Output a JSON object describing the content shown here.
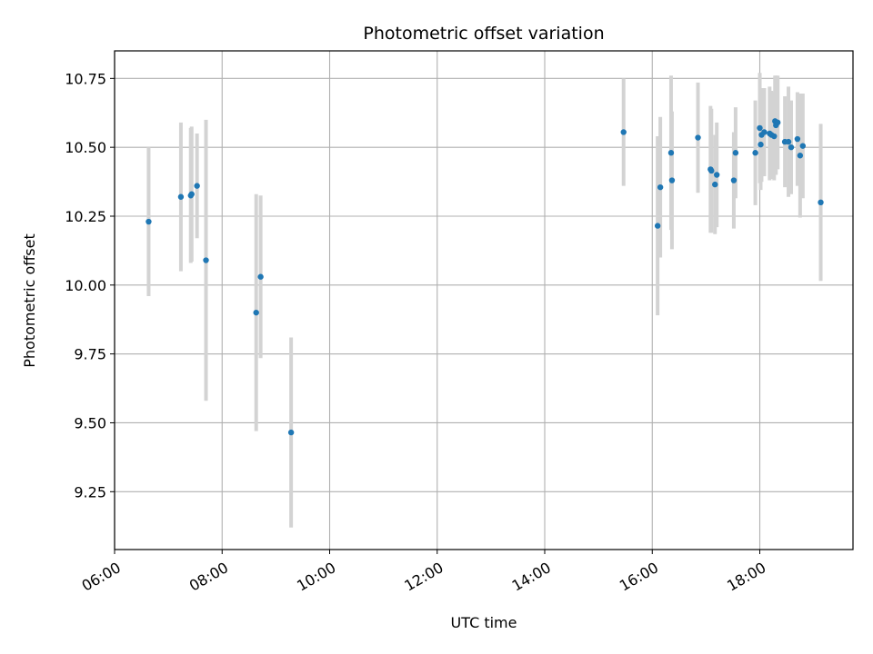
{
  "chart_data": {
    "type": "scatter",
    "title": "Photometric offset variation",
    "xlabel": "UTC time",
    "ylabel": "Photometric offset",
    "x_is_time": true,
    "xlim": [
      "06:00",
      "19:44"
    ],
    "ylim": [
      9.04,
      10.85
    ],
    "x_ticks": [
      "06:00",
      "08:00",
      "10:00",
      "12:00",
      "14:00",
      "16:00",
      "18:00"
    ],
    "y_ticks": [
      9.25,
      9.5,
      9.75,
      10.0,
      10.25,
      10.5,
      10.75
    ],
    "y_tick_labels": [
      "9.25",
      "9.50",
      "9.75",
      "10.00",
      "10.25",
      "10.50",
      "10.75"
    ],
    "grid": true,
    "point_color": "#1f77b4",
    "errorbar_color": "#d3d3d3",
    "points": [
      {
        "x": "06:38",
        "y": 10.23,
        "err": 0.27
      },
      {
        "x": "07:14",
        "y": 10.32,
        "err": 0.27
      },
      {
        "x": "07:25",
        "y": 10.325,
        "err": 0.245
      },
      {
        "x": "07:26",
        "y": 10.33,
        "err": 0.245
      },
      {
        "x": "07:32",
        "y": 10.36,
        "err": 0.19
      },
      {
        "x": "07:42",
        "y": 10.09,
        "err": 0.51
      },
      {
        "x": "08:38",
        "y": 9.9,
        "err": 0.43
      },
      {
        "x": "08:43",
        "y": 10.03,
        "err": 0.295
      },
      {
        "x": "09:17",
        "y": 9.465,
        "err": 0.345
      },
      {
        "x": "15:28",
        "y": 10.555,
        "err": 0.195
      },
      {
        "x": "16:06",
        "y": 10.215,
        "err": 0.325
      },
      {
        "x": "16:09",
        "y": 10.355,
        "err": 0.255
      },
      {
        "x": "16:21",
        "y": 10.48,
        "err": 0.28
      },
      {
        "x": "16:22",
        "y": 10.38,
        "err": 0.25
      },
      {
        "x": "16:51",
        "y": 10.535,
        "err": 0.2
      },
      {
        "x": "17:05",
        "y": 10.42,
        "err": 0.23
      },
      {
        "x": "17:06",
        "y": 10.415,
        "err": 0.225
      },
      {
        "x": "17:10",
        "y": 10.365,
        "err": 0.18
      },
      {
        "x": "17:12",
        "y": 10.4,
        "err": 0.19
      },
      {
        "x": "17:31",
        "y": 10.38,
        "err": 0.175
      },
      {
        "x": "17:33",
        "y": 10.48,
        "err": 0.165
      },
      {
        "x": "17:55",
        "y": 10.48,
        "err": 0.19
      },
      {
        "x": "18:00",
        "y": 10.57,
        "err": 0.2
      },
      {
        "x": "18:01",
        "y": 10.51,
        "err": 0.165
      },
      {
        "x": "18:02",
        "y": 10.545,
        "err": 0.17
      },
      {
        "x": "18:05",
        "y": 10.555,
        "err": 0.16
      },
      {
        "x": "18:11",
        "y": 10.55,
        "err": 0.17
      },
      {
        "x": "18:13",
        "y": 10.545,
        "err": 0.16
      },
      {
        "x": "18:16",
        "y": 10.54,
        "err": 0.16
      },
      {
        "x": "18:17",
        "y": 10.595,
        "err": 0.165
      },
      {
        "x": "18:18",
        "y": 10.58,
        "err": 0.18
      },
      {
        "x": "18:20",
        "y": 10.59,
        "err": 0.17
      },
      {
        "x": "18:28",
        "y": 10.52,
        "err": 0.165
      },
      {
        "x": "18:32",
        "y": 10.52,
        "err": 0.2
      },
      {
        "x": "18:35",
        "y": 10.5,
        "err": 0.17
      },
      {
        "x": "18:42",
        "y": 10.53,
        "err": 0.17
      },
      {
        "x": "18:45",
        "y": 10.47,
        "err": 0.225
      },
      {
        "x": "18:48",
        "y": 10.505,
        "err": 0.19
      },
      {
        "x": "19:08",
        "y": 10.3,
        "err": 0.285
      }
    ]
  }
}
